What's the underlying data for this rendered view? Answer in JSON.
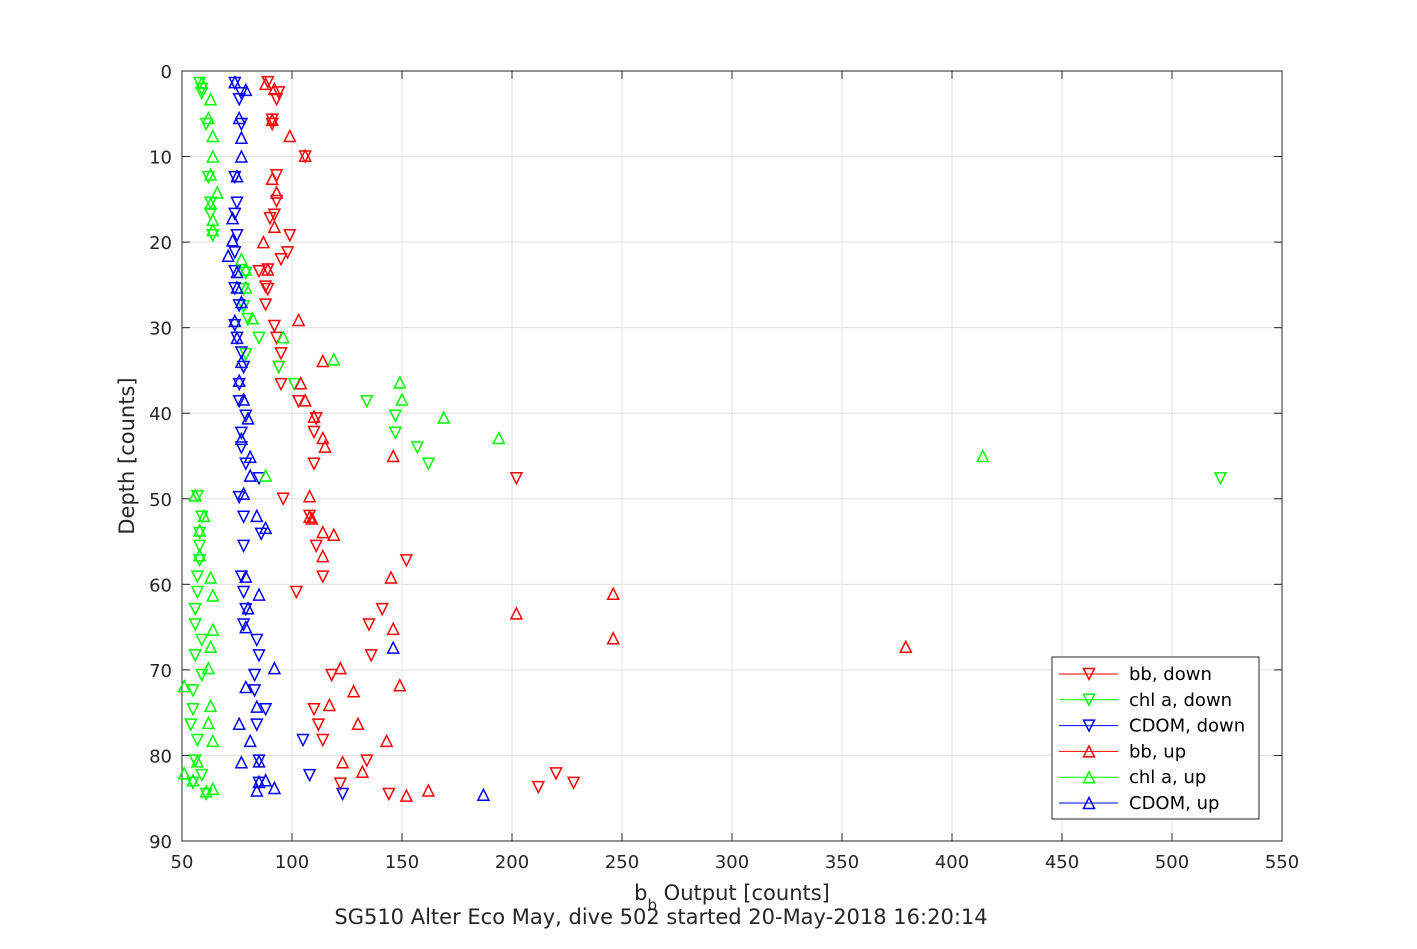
{
  "chart_data": {
    "type": "scatter",
    "title": "SG510 Alter Eco May, dive 502 started 20-May-2018 16:20:14",
    "xlabel": {
      "main": "b",
      "sub": "b",
      "rest": " Output [counts]"
    },
    "ylabel": "Depth [counts]",
    "xlim": [
      50,
      550
    ],
    "ylim": [
      0,
      90
    ],
    "y_reversed": true,
    "grid": true,
    "legend_location": "bottom-right",
    "xticks": [
      "50",
      "100",
      "150",
      "200",
      "250",
      "300",
      "350",
      "400",
      "450",
      "500",
      "550"
    ],
    "yticks": [
      "0",
      "10",
      "20",
      "30",
      "40",
      "50",
      "60",
      "70",
      "80",
      "90"
    ],
    "series": [
      {
        "name": "bb, down",
        "color": "#ff0000",
        "marker": "triangle-down",
        "points": [
          [
            89,
            1.3
          ],
          [
            94,
            2.5
          ],
          [
            93,
            3.3
          ],
          [
            91,
            5.7
          ],
          [
            91,
            6.2
          ],
          [
            106,
            10
          ],
          [
            93,
            12.2
          ],
          [
            93,
            15.2
          ],
          [
            90,
            17.2
          ],
          [
            92,
            16.8
          ],
          [
            99,
            19.2
          ],
          [
            98,
            21.2
          ],
          [
            95,
            22
          ],
          [
            89,
            23.2
          ],
          [
            85,
            23.4
          ],
          [
            88,
            25.2
          ],
          [
            89,
            25.5
          ],
          [
            88,
            27.3
          ],
          [
            92,
            29.8
          ],
          [
            93,
            31.2
          ],
          [
            95,
            33
          ],
          [
            94,
            34.6
          ],
          [
            95,
            36.6
          ],
          [
            103,
            38.6
          ],
          [
            111,
            40.6
          ],
          [
            110,
            42.2
          ],
          [
            110,
            45.9
          ],
          [
            96,
            50
          ],
          [
            108,
            52
          ],
          [
            111,
            55.5
          ],
          [
            114,
            59.1
          ],
          [
            102,
            60.9
          ],
          [
            141,
            62.9
          ],
          [
            135,
            64.7
          ],
          [
            136,
            68.3
          ],
          [
            118,
            70.6
          ],
          [
            110,
            74.6
          ],
          [
            112,
            76.4
          ],
          [
            114,
            78.2
          ],
          [
            134,
            80.6
          ],
          [
            122,
            83.3
          ],
          [
            144,
            84.5
          ],
          [
            212,
            83.7
          ],
          [
            228,
            83.2
          ],
          [
            220,
            82.1
          ],
          [
            202,
            47.6
          ],
          [
            152,
            57.2
          ]
        ]
      },
      {
        "name": "chl a, down",
        "color": "#00ff00",
        "marker": "triangle-down",
        "points": [
          [
            58,
            1.4
          ],
          [
            59,
            2.1
          ],
          [
            59,
            2.6
          ],
          [
            61,
            6.2
          ],
          [
            62,
            12.4
          ],
          [
            63,
            15.4
          ],
          [
            63,
            16.7
          ],
          [
            64,
            19.2
          ],
          [
            79,
            23.6
          ],
          [
            78,
            25.5
          ],
          [
            78,
            27.5
          ],
          [
            80,
            29
          ],
          [
            85,
            31.2
          ],
          [
            79,
            33.1
          ],
          [
            94,
            34.6
          ],
          [
            101,
            36.6
          ],
          [
            134,
            38.6
          ],
          [
            147,
            40.3
          ],
          [
            147,
            42.3
          ],
          [
            157,
            44
          ],
          [
            162,
            45.9
          ],
          [
            522,
            47.6
          ],
          [
            57,
            49.7
          ],
          [
            59,
            52.1
          ],
          [
            58,
            54
          ],
          [
            58,
            55.5
          ],
          [
            58,
            57.2
          ],
          [
            57,
            59.1
          ],
          [
            57,
            60.9
          ],
          [
            56,
            62.9
          ],
          [
            56,
            64.7
          ],
          [
            59,
            66.5
          ],
          [
            56,
            68.3
          ],
          [
            59,
            70.6
          ],
          [
            55,
            72.4
          ],
          [
            55,
            74.6
          ],
          [
            54,
            76.4
          ],
          [
            57,
            78.2
          ],
          [
            56,
            80.6
          ],
          [
            59,
            82.3
          ],
          [
            55,
            83.2
          ],
          [
            61,
            84.5
          ]
        ]
      },
      {
        "name": "CDOM, down",
        "color": "#0000ff",
        "marker": "triangle-down",
        "points": [
          [
            74,
            1.4
          ],
          [
            77,
            2.6
          ],
          [
            76,
            3.3
          ],
          [
            77,
            6.2
          ],
          [
            74,
            12.4
          ],
          [
            75,
            15.4
          ],
          [
            74,
            16.7
          ],
          [
            75,
            19.2
          ],
          [
            74,
            21.2
          ],
          [
            74,
            23.4
          ],
          [
            74,
            25.4
          ],
          [
            76,
            27.4
          ],
          [
            74,
            29.7
          ],
          [
            75,
            31.2
          ],
          [
            77,
            32.9
          ],
          [
            78,
            34.6
          ],
          [
            76,
            36.6
          ],
          [
            76,
            38.6
          ],
          [
            79,
            40.3
          ],
          [
            77,
            42.3
          ],
          [
            77,
            44
          ],
          [
            79,
            45.9
          ],
          [
            85,
            47.6
          ],
          [
            76,
            49.8
          ],
          [
            78,
            52.1
          ],
          [
            86,
            54.1
          ],
          [
            78,
            55.5
          ],
          [
            77,
            59.1
          ],
          [
            78,
            60.9
          ],
          [
            79,
            62.9
          ],
          [
            78,
            64.7
          ],
          [
            84,
            66.5
          ],
          [
            85,
            68.3
          ],
          [
            83,
            70.6
          ],
          [
            83,
            72.4
          ],
          [
            88,
            74.6
          ],
          [
            84,
            76.4
          ],
          [
            105,
            78.2
          ],
          [
            85,
            80.6
          ],
          [
            108,
            82.3
          ],
          [
            85,
            83.2
          ],
          [
            123,
            84.5
          ]
        ]
      },
      {
        "name": "bb, up",
        "color": "#ff0000",
        "marker": "triangle-up",
        "points": [
          [
            88,
            1.5
          ],
          [
            92,
            2.1
          ],
          [
            91,
            5.7
          ],
          [
            99,
            7.6
          ],
          [
            106,
            9.9
          ],
          [
            91,
            12.6
          ],
          [
            93,
            14.2
          ],
          [
            92,
            18.2
          ],
          [
            87,
            20
          ],
          [
            89,
            23.2
          ],
          [
            103,
            29.1
          ],
          [
            114,
            33.9
          ],
          [
            104,
            36.5
          ],
          [
            106,
            38.5
          ],
          [
            110,
            40.4
          ],
          [
            114,
            42.9
          ],
          [
            115,
            43.9
          ],
          [
            146,
            45
          ],
          [
            108,
            49.7
          ],
          [
            109,
            52.3
          ],
          [
            119,
            54.2
          ],
          [
            114,
            53.9
          ],
          [
            114,
            56.7
          ],
          [
            145,
            59.2
          ],
          [
            246,
            61.1
          ],
          [
            202,
            63.4
          ],
          [
            146,
            65.2
          ],
          [
            246,
            66.3
          ],
          [
            379,
            67.3
          ],
          [
            122,
            69.8
          ],
          [
            128,
            72.5
          ],
          [
            149,
            71.8
          ],
          [
            117,
            74.1
          ],
          [
            130,
            76.3
          ],
          [
            143,
            78.3
          ],
          [
            123,
            80.8
          ],
          [
            132,
            81.9
          ],
          [
            162,
            84.1
          ],
          [
            152,
            84.7
          ],
          [
            108,
            52.1
          ]
        ]
      },
      {
        "name": "chl a, up",
        "color": "#00ff00",
        "marker": "triangle-up",
        "points": [
          [
            59,
            1.4
          ],
          [
            63,
            3.3
          ],
          [
            62,
            5.5
          ],
          [
            64,
            7.6
          ],
          [
            64,
            10
          ],
          [
            63,
            12.1
          ],
          [
            66,
            14.2
          ],
          [
            63,
            15.5
          ],
          [
            64,
            17.4
          ],
          [
            64,
            18.6
          ],
          [
            77,
            22
          ],
          [
            79,
            23.2
          ],
          [
            79,
            25.3
          ],
          [
            82,
            28.9
          ],
          [
            96,
            31.1
          ],
          [
            119,
            33.7
          ],
          [
            149,
            36.4
          ],
          [
            150,
            38.4
          ],
          [
            169,
            40.5
          ],
          [
            194,
            42.9
          ],
          [
            414,
            45
          ],
          [
            88,
            47.3
          ],
          [
            56,
            49.6
          ],
          [
            60,
            52
          ],
          [
            58,
            53.7
          ],
          [
            58,
            56.6
          ],
          [
            63,
            59.2
          ],
          [
            64,
            61.3
          ],
          [
            64,
            65.3
          ],
          [
            63,
            67.3
          ],
          [
            62,
            69.8
          ],
          [
            51,
            71.9
          ],
          [
            63,
            74.2
          ],
          [
            62,
            76.2
          ],
          [
            64,
            78.3
          ],
          [
            57,
            80.7
          ],
          [
            51,
            82.1
          ],
          [
            55,
            82.9
          ],
          [
            61,
            84.2
          ],
          [
            64,
            83.9
          ]
        ]
      },
      {
        "name": "CDOM, up",
        "color": "#0000ff",
        "marker": "triangle-up",
        "points": [
          [
            74,
            1.3
          ],
          [
            79,
            2.2
          ],
          [
            76,
            5.5
          ],
          [
            77,
            7.8
          ],
          [
            77,
            10
          ],
          [
            75,
            12.3
          ],
          [
            73,
            17.2
          ],
          [
            73,
            19.8
          ],
          [
            71,
            21.6
          ],
          [
            75,
            23.5
          ],
          [
            75,
            25.3
          ],
          [
            77,
            27
          ],
          [
            74,
            29.2
          ],
          [
            75,
            31.2
          ],
          [
            77,
            34
          ],
          [
            76,
            36.2
          ],
          [
            78,
            38.4
          ],
          [
            80,
            40.6
          ],
          [
            77,
            43
          ],
          [
            81,
            45.1
          ],
          [
            81,
            47.3
          ],
          [
            78,
            49.4
          ],
          [
            84,
            52
          ],
          [
            88,
            53.4
          ],
          [
            79,
            59.1
          ],
          [
            85,
            61.2
          ],
          [
            80,
            62.8
          ],
          [
            79,
            65
          ],
          [
            92,
            69.8
          ],
          [
            79,
            72
          ],
          [
            84,
            74.3
          ],
          [
            76,
            76.3
          ],
          [
            81,
            78.3
          ],
          [
            77,
            80.8
          ],
          [
            85,
            80.7
          ],
          [
            85,
            83.1
          ],
          [
            88,
            82.9
          ],
          [
            92,
            83.8
          ],
          [
            84,
            84.1
          ],
          [
            146,
            67.4
          ],
          [
            187,
            84.6
          ]
        ]
      }
    ]
  }
}
